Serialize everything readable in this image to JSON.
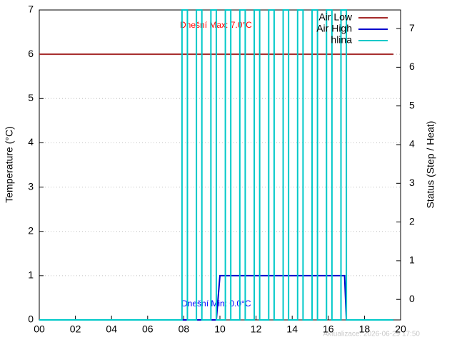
{
  "chart_data": {
    "type": "line",
    "x_label": null,
    "y_label": "Temperature (°C)",
    "y2_label": "Status (Step / Heat)",
    "annotations": [
      {
        "text": "Dnešní Max: 7.0°C",
        "color": "#ff0000"
      },
      {
        "text": "Dnešní Min: 0.0°C",
        "color": "#0000ff"
      }
    ],
    "footer": "Aktualizace: 2026-06-29 17:50",
    "xlim": [
      0,
      20
    ],
    "xticks": [
      {
        "value": 0,
        "label": "00"
      },
      {
        "value": 2,
        "label": "02"
      },
      {
        "value": 4,
        "label": "04"
      },
      {
        "value": 6,
        "label": "06"
      },
      {
        "value": 8,
        "label": "08"
      },
      10,
      12,
      14,
      16,
      18,
      20
    ],
    "ylim": [
      0,
      7
    ],
    "yticks": [
      0,
      1,
      2,
      3,
      4,
      5,
      6,
      7
    ],
    "y2lim": [
      -0.53,
      7.48
    ],
    "y2ticks": [
      0,
      1,
      2,
      3,
      4,
      5,
      6,
      7
    ],
    "grid": true,
    "legend": "top-right",
    "series": [
      {
        "name": "Air Low",
        "color": "#a52a2a",
        "x": [
          0,
          19.6
        ],
        "values": [
          6,
          6
        ]
      },
      {
        "name": "Air High",
        "color": "#0000cc",
        "x": [
          0,
          9.8,
          10.0,
          16.9,
          17.0,
          19.6
        ],
        "values": [
          0,
          0,
          1,
          1,
          0,
          0
        ]
      },
      {
        "name": "hlina",
        "color": "#00c8c8",
        "x": [
          0,
          7.9,
          7.9,
          8.2,
          8.2,
          8.7,
          8.7,
          9.0,
          9.0,
          9.5,
          9.5,
          9.8,
          9.8,
          10.3,
          10.3,
          10.6,
          10.6,
          11.1,
          11.1,
          11.4,
          11.4,
          11.9,
          11.9,
          12.2,
          12.2,
          12.7,
          12.7,
          13.0,
          13.0,
          13.5,
          13.5,
          13.8,
          13.8,
          14.3,
          14.3,
          14.6,
          14.6,
          15.1,
          15.1,
          15.4,
          15.4,
          15.9,
          15.9,
          16.2,
          16.2,
          16.7,
          16.7,
          17.0,
          17.0,
          19.6
        ],
        "values": [
          0,
          0,
          7,
          7,
          0,
          0,
          7,
          7,
          0,
          0,
          7,
          7,
          0,
          0,
          7,
          7,
          0,
          0,
          7,
          7,
          0,
          0,
          7,
          7,
          0,
          0,
          7,
          7,
          0,
          0,
          7,
          7,
          0,
          0,
          7,
          7,
          0,
          0,
          7,
          7,
          0,
          0,
          7,
          7,
          0,
          0,
          7,
          7,
          0,
          0
        ]
      }
    ]
  }
}
